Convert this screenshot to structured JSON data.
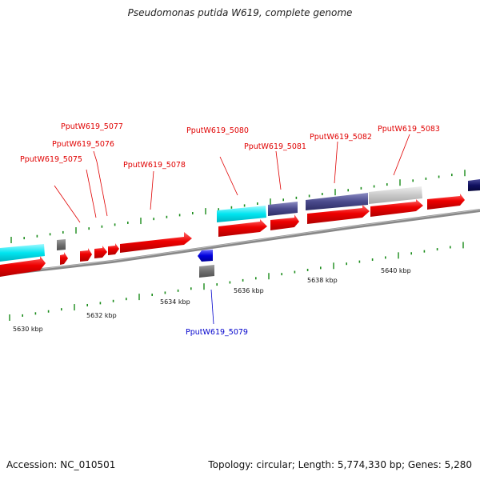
{
  "title": "Pseudomonas putida W619, complete genome",
  "footer": {
    "accession": "Accession: NC_010501",
    "summary": "Topology: circular; Length: 5,774,330 bp; Genes: 5,280"
  },
  "scale_labels": [
    "5630 kbp",
    "5632 kbp",
    "5634 kbp",
    "5636 kbp",
    "5638 kbp",
    "5640 kbp"
  ],
  "gene_labels": [
    {
      "text": "PputW619_5075",
      "color": "#e00000"
    },
    {
      "text": "PputW619_5076",
      "color": "#e00000"
    },
    {
      "text": "PputW619_5077",
      "color": "#e00000"
    },
    {
      "text": "PputW619_5078",
      "color": "#e00000"
    },
    {
      "text": "PputW619_5080",
      "color": "#e00000"
    },
    {
      "text": "PputW619_5081",
      "color": "#e00000"
    },
    {
      "text": "PputW619_5082",
      "color": "#e00000"
    },
    {
      "text": "PputW619_5083",
      "color": "#e00000"
    },
    {
      "text": "PputW619_5079",
      "color": "#0000cc"
    }
  ],
  "colors": {
    "forward_cds": "#e00000",
    "reverse_cds": "#0000dd",
    "backbone": "#888888",
    "tick": "#1a8c1a",
    "cyan_feature": "#00e5f0",
    "slate_feature": "#4a4a8c",
    "light_gray_feature": "#c8c8c8",
    "dark_gray_feature": "#707070",
    "navy_feature": "#101060"
  }
}
